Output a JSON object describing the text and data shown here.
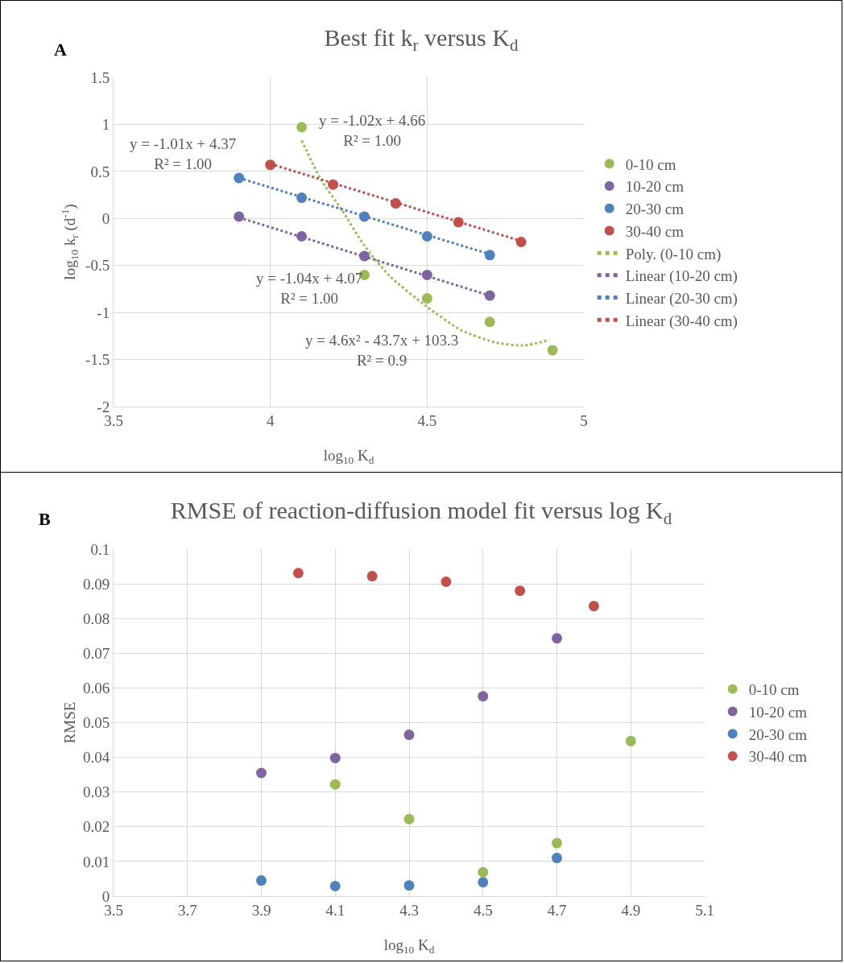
{
  "chart_data": [
    {
      "type": "scatter",
      "title": "Best fit k$_{r}$ versus K$_{d}$",
      "xlabel": "log$_{10}$ K$_{d}$",
      "ylabel": "log$_{10}$ k$_{r}$ (d$^{-1}$)",
      "xlim": [
        3.5,
        5
      ],
      "xticks": [
        3.5,
        4,
        4.5,
        5
      ],
      "ylim": [
        -2,
        1.5
      ],
      "yticks": [
        -2,
        -1.5,
        -1,
        -0.5,
        0,
        0.5,
        1,
        1.5
      ],
      "grid": true,
      "legend": "right",
      "series": [
        {
          "name": "0-10 cm",
          "marker": "circle",
          "color": "#9bbb59",
          "x": [
            4.1,
            4.3,
            4.5,
            4.7,
            4.9
          ],
          "values": [
            0.97,
            -0.6,
            -0.85,
            -1.1,
            -1.4
          ]
        },
        {
          "name": "10-20 cm",
          "marker": "circle",
          "color": "#8064a2",
          "x": [
            3.9,
            4.1,
            4.3,
            4.5,
            4.7
          ],
          "values": [
            0.02,
            -0.19,
            -0.4,
            -0.6,
            -0.82
          ]
        },
        {
          "name": "20-30 cm",
          "marker": "circle",
          "color": "#4f81bd",
          "x": [
            3.9,
            4.1,
            4.3,
            4.5,
            4.7
          ],
          "values": [
            0.43,
            0.22,
            0.02,
            -0.19,
            -0.39
          ]
        },
        {
          "name": "30-40 cm",
          "marker": "circle",
          "color": "#c0504d",
          "x": [
            4.0,
            4.2,
            4.4,
            4.6,
            4.8
          ],
          "values": [
            0.57,
            0.36,
            0.16,
            -0.04,
            -0.25
          ]
        },
        {
          "name": "Poly. (0-10 cm)",
          "type": "line",
          "marker": "none",
          "line_style": "dotted",
          "color": "#9bbb59",
          "x": [
            4.1,
            4.16,
            4.23,
            4.3,
            4.38,
            4.5,
            4.61,
            4.72,
            4.81,
            4.89
          ],
          "values": [
            0.83,
            0.42,
            0.08,
            -0.29,
            -0.61,
            -0.94,
            -1.19,
            -1.32,
            -1.35,
            -1.29
          ]
        },
        {
          "name": "Linear (10-20 cm)",
          "type": "line",
          "marker": "none",
          "line_style": "dotted",
          "color": "#8064a2",
          "x": [
            3.9,
            4.7
          ],
          "values": [
            0.01,
            -0.82
          ]
        },
        {
          "name": "Linear (20-30 cm)",
          "type": "line",
          "marker": "none",
          "line_style": "dotted",
          "color": "#4f81bd",
          "x": [
            3.9,
            4.7
          ],
          "values": [
            0.43,
            -0.38
          ]
        },
        {
          "name": "Linear (30-40 cm)",
          "type": "line",
          "marker": "none",
          "line_style": "dotted",
          "color": "#c0504d",
          "x": [
            4.0,
            4.8
          ],
          "values": [
            0.58,
            -0.24
          ]
        }
      ],
      "annotations": [
        "A",
        "y = -1.01x + 4.37\nR² = 1.00",
        "y = -1.02x + 4.66\nR² = 1.00",
        "y = -1.04x + 4.07\nR² = 1.00",
        "y = 4.6x² - 43.7x + 103.3\nR² = 0.9"
      ]
    },
    {
      "type": "scatter",
      "title": "RMSE of reaction-diffusion model fit versus log K$_{d}$",
      "xlabel": "log$_{10}$ K$_{d}$",
      "ylabel": "RMSE",
      "xlim": [
        3.5,
        5.1
      ],
      "xticks": [
        3.5,
        3.7,
        3.9,
        4.1,
        4.3,
        4.5,
        4.7,
        4.9,
        5.1
      ],
      "ylim": [
        0,
        0.1
      ],
      "yticks": [
        0,
        0.01,
        0.02,
        0.03,
        0.04,
        0.05,
        0.06,
        0.07,
        0.08,
        0.09,
        0.1
      ],
      "grid": true,
      "legend": "right",
      "marker": "circle",
      "series": [
        {
          "name": "0-10 cm",
          "color": "#9bbb59",
          "x": [
            4.1,
            4.3,
            4.5,
            4.7,
            4.9
          ],
          "values": [
            0.0322,
            0.0222,
            0.0069,
            0.0153,
            0.0447
          ]
        },
        {
          "name": "10-20 cm",
          "color": "#8064a2",
          "x": [
            3.9,
            4.1,
            4.3,
            4.5,
            4.7
          ],
          "values": [
            0.0355,
            0.0398,
            0.0465,
            0.0576,
            0.0743
          ]
        },
        {
          "name": "20-30 cm",
          "color": "#4f81bd",
          "x": [
            3.9,
            4.1,
            4.3,
            4.5,
            4.7
          ],
          "values": [
            0.0045,
            0.0029,
            0.0031,
            0.004,
            0.011
          ]
        },
        {
          "name": "30-40 cm",
          "color": "#c0504d",
          "x": [
            4.0,
            4.2,
            4.4,
            4.6,
            4.8
          ],
          "values": [
            0.0931,
            0.0922,
            0.0906,
            0.088,
            0.0836
          ]
        }
      ],
      "annotations": [
        "B"
      ]
    }
  ]
}
